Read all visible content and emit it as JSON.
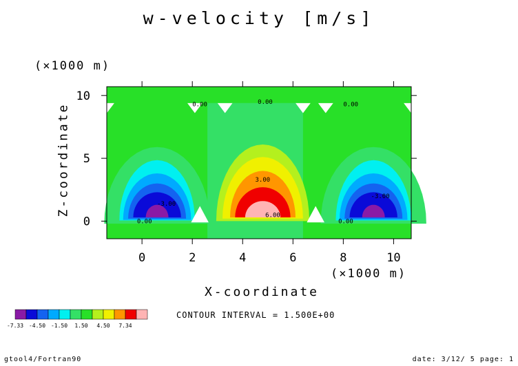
{
  "chart_data": {
    "type": "contour",
    "title": "w-velocity [m/s]",
    "xlabel": "X-coordinate",
    "ylabel": "Z-coordinate",
    "xunit": "(×1000 m)",
    "yunit": "(×1000 m)",
    "xlim": [
      -1.4,
      10.7
    ],
    "ylim": [
      -1.4,
      10.7
    ],
    "xticks": [
      0,
      2,
      4,
      6,
      8,
      10
    ],
    "yticks": [
      0,
      5,
      10
    ],
    "contour_interval_text": "CONTOUR INTERVAL = 1.500E+00",
    "colorbar": {
      "colors": [
        "#8a1aa6",
        "#0a0ad8",
        "#1463f0",
        "#00aaff",
        "#00f0f0",
        "#34e066",
        "#28e028",
        "#b4f01e",
        "#f0f000",
        "#ff9600",
        "#f00000",
        "#ffb4b4"
      ],
      "tick_labels": [
        "-7.33",
        "-4.50",
        "-1.50",
        "1.50",
        "4.50",
        "7.34"
      ]
    },
    "contour_labels": [
      {
        "text": "0.00",
        "x": -0.2,
        "y": 0.0
      },
      {
        "text": "-3.00",
        "x": 0.6,
        "y": 1.4
      },
      {
        "text": "0.00",
        "x": 2.0,
        "y": 9.3
      },
      {
        "text": "0.00",
        "x": 4.6,
        "y": 9.5
      },
      {
        "text": "3.00",
        "x": 4.5,
        "y": 3.3
      },
      {
        "text": "6.00",
        "x": 4.9,
        "y": 0.5
      },
      {
        "text": "0.00",
        "x": 8.0,
        "y": 9.3
      },
      {
        "text": "-3.00",
        "x": 9.1,
        "y": 2.0
      },
      {
        "text": "0.00",
        "x": 7.8,
        "y": 0.0
      }
    ]
  },
  "footer": {
    "left": "gtool4/Fortran90",
    "right": "date: 3/12/ 5 page: 1"
  }
}
